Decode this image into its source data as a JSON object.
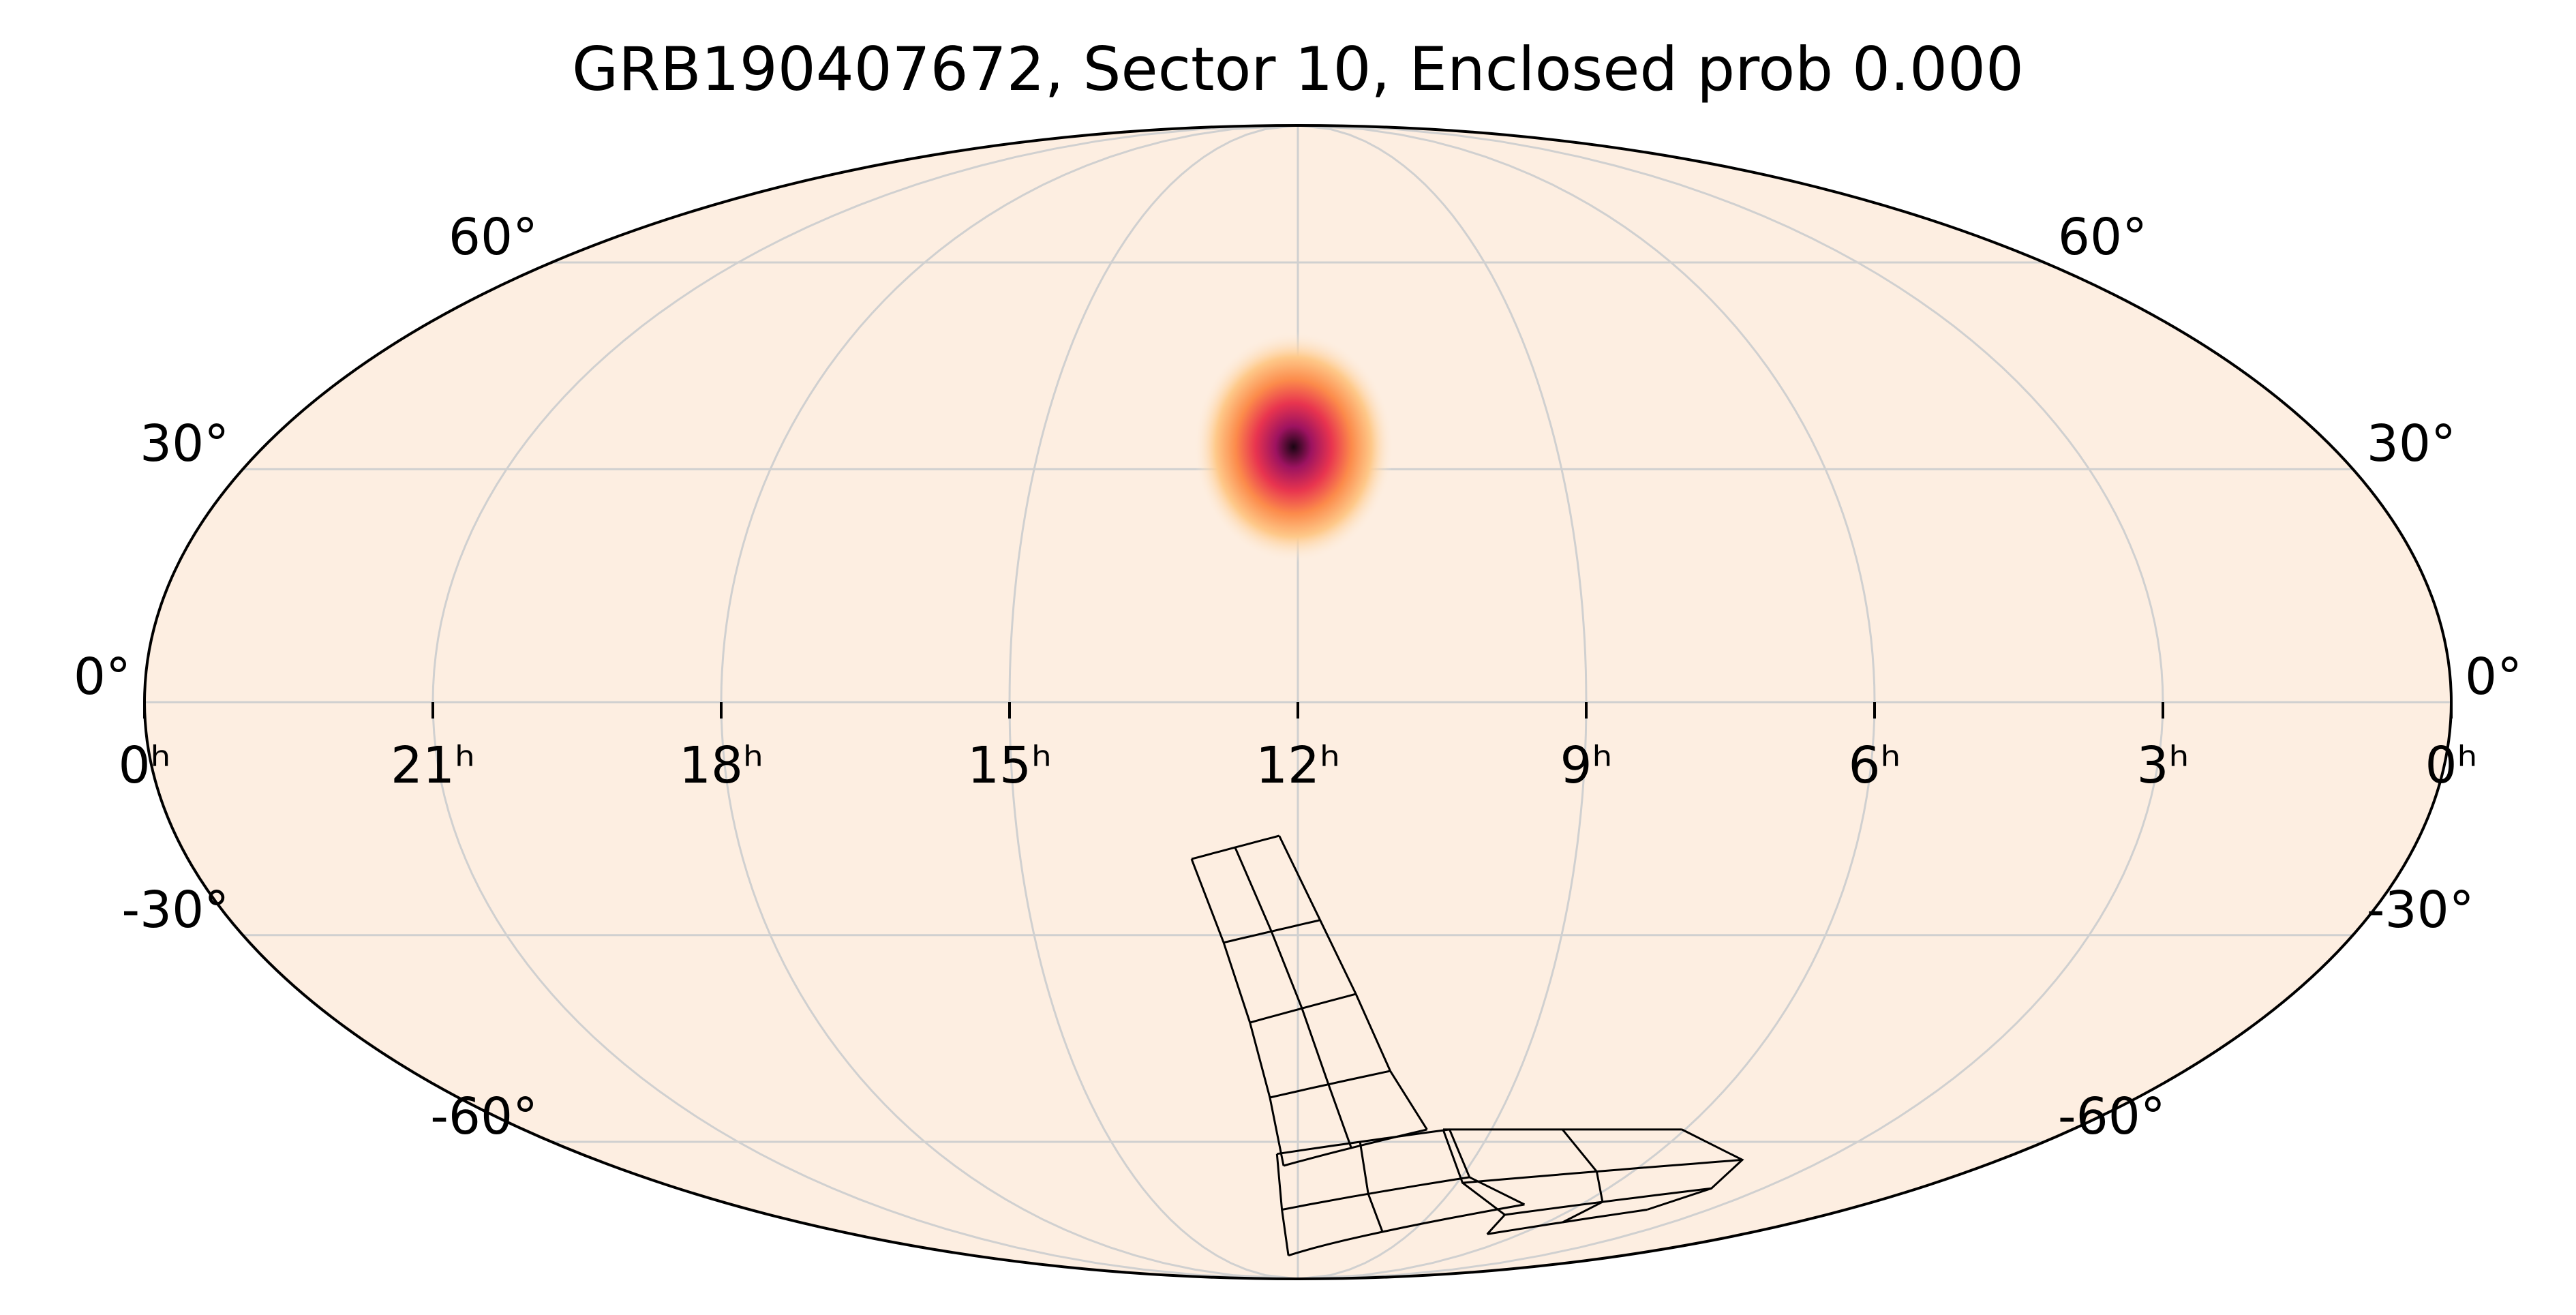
{
  "chart_data": {
    "type": "heatmap",
    "projection": "mollweide",
    "title": "GRB190407672, Sector 10, Enclosed prob 0.000",
    "x_ticks": [
      {
        "ra_hours": 24,
        "label": "0ʰ",
        "side": "left"
      },
      {
        "ra_hours": 21,
        "label": "21ʰ"
      },
      {
        "ra_hours": 18,
        "label": "18ʰ"
      },
      {
        "ra_hours": 15,
        "label": "15ʰ"
      },
      {
        "ra_hours": 12,
        "label": "12ʰ"
      },
      {
        "ra_hours": 9,
        "label": "9ʰ"
      },
      {
        "ra_hours": 6,
        "label": "6ʰ"
      },
      {
        "ra_hours": 3,
        "label": "3ʰ"
      },
      {
        "ra_hours": 0,
        "label": "0ʰ",
        "side": "right"
      }
    ],
    "y_ticks_left": [
      {
        "dec": 60,
        "label": "60°"
      },
      {
        "dec": 30,
        "label": "30°"
      },
      {
        "dec": 0,
        "label": "0°"
      },
      {
        "dec": -30,
        "label": "-30°"
      },
      {
        "dec": -60,
        "label": "-60°"
      }
    ],
    "y_ticks_right": [
      {
        "dec": 60,
        "label": "60°"
      },
      {
        "dec": 30,
        "label": "30°"
      },
      {
        "dec": 0,
        "label": "0°"
      },
      {
        "dec": -30,
        "label": "-30°"
      },
      {
        "dec": -60,
        "label": "-60°"
      }
    ],
    "grid": true,
    "ra_gridlines_hours": [
      21,
      18,
      15,
      12,
      9,
      6,
      3
    ],
    "dec_gridlines": [
      -60,
      -30,
      0,
      30,
      60
    ],
    "background_color": "#fdeee1",
    "grid_color": "#d0d0d0",
    "colormap": [
      "#fdeee1",
      "#fec98a",
      "#fc8b4b",
      "#e8344f",
      "#9d1360",
      "#1a0512"
    ],
    "probability_peak": {
      "ra_hours": 12.05,
      "dec": 33,
      "sigma_deg": 6
    },
    "sector_footprint": {
      "outline_color": "#000000",
      "cameras": [
        {
          "rows": [
            [
              [
                13.15,
                -20
              ],
              [
                12.2,
                -17
              ]
            ],
            [
              [
                12.85,
                -31
              ],
              [
                11.75,
                -28
              ]
            ],
            [
              [
                12.6,
                -42
              ],
              [
                11.3,
                -38
              ]
            ],
            [
              [
                12.4,
                -53
              ],
              [
                10.75,
                -49
              ]
            ],
            [
              [
                12.25,
                -64
              ],
              [
                10.0,
                -58
              ]
            ]
          ]
        },
        {
          "rows": [
            [
              [
                12.35,
                -62
              ],
              [
                9.65,
                -58
              ]
            ],
            [
              [
                12.35,
                -72
              ],
              [
                8.85,
                -66
              ]
            ],
            [
              [
                12.35,
                -82
              ],
              [
                7.2,
                -71
              ]
            ]
          ]
        },
        {
          "rows": [
            [
              [
                9.75,
                -58
              ],
              [
                6.05,
                -58
              ]
            ],
            [
              [
                8.9,
                -67
              ],
              [
                4.4,
                -63
              ]
            ],
            [
              [
                7.3,
                -73
              ],
              [
                4.0,
                -68
              ]
            ],
            [
              [
                6.9,
                -77
              ],
              [
                4.35,
                -72
              ]
            ]
          ]
        }
      ]
    }
  }
}
